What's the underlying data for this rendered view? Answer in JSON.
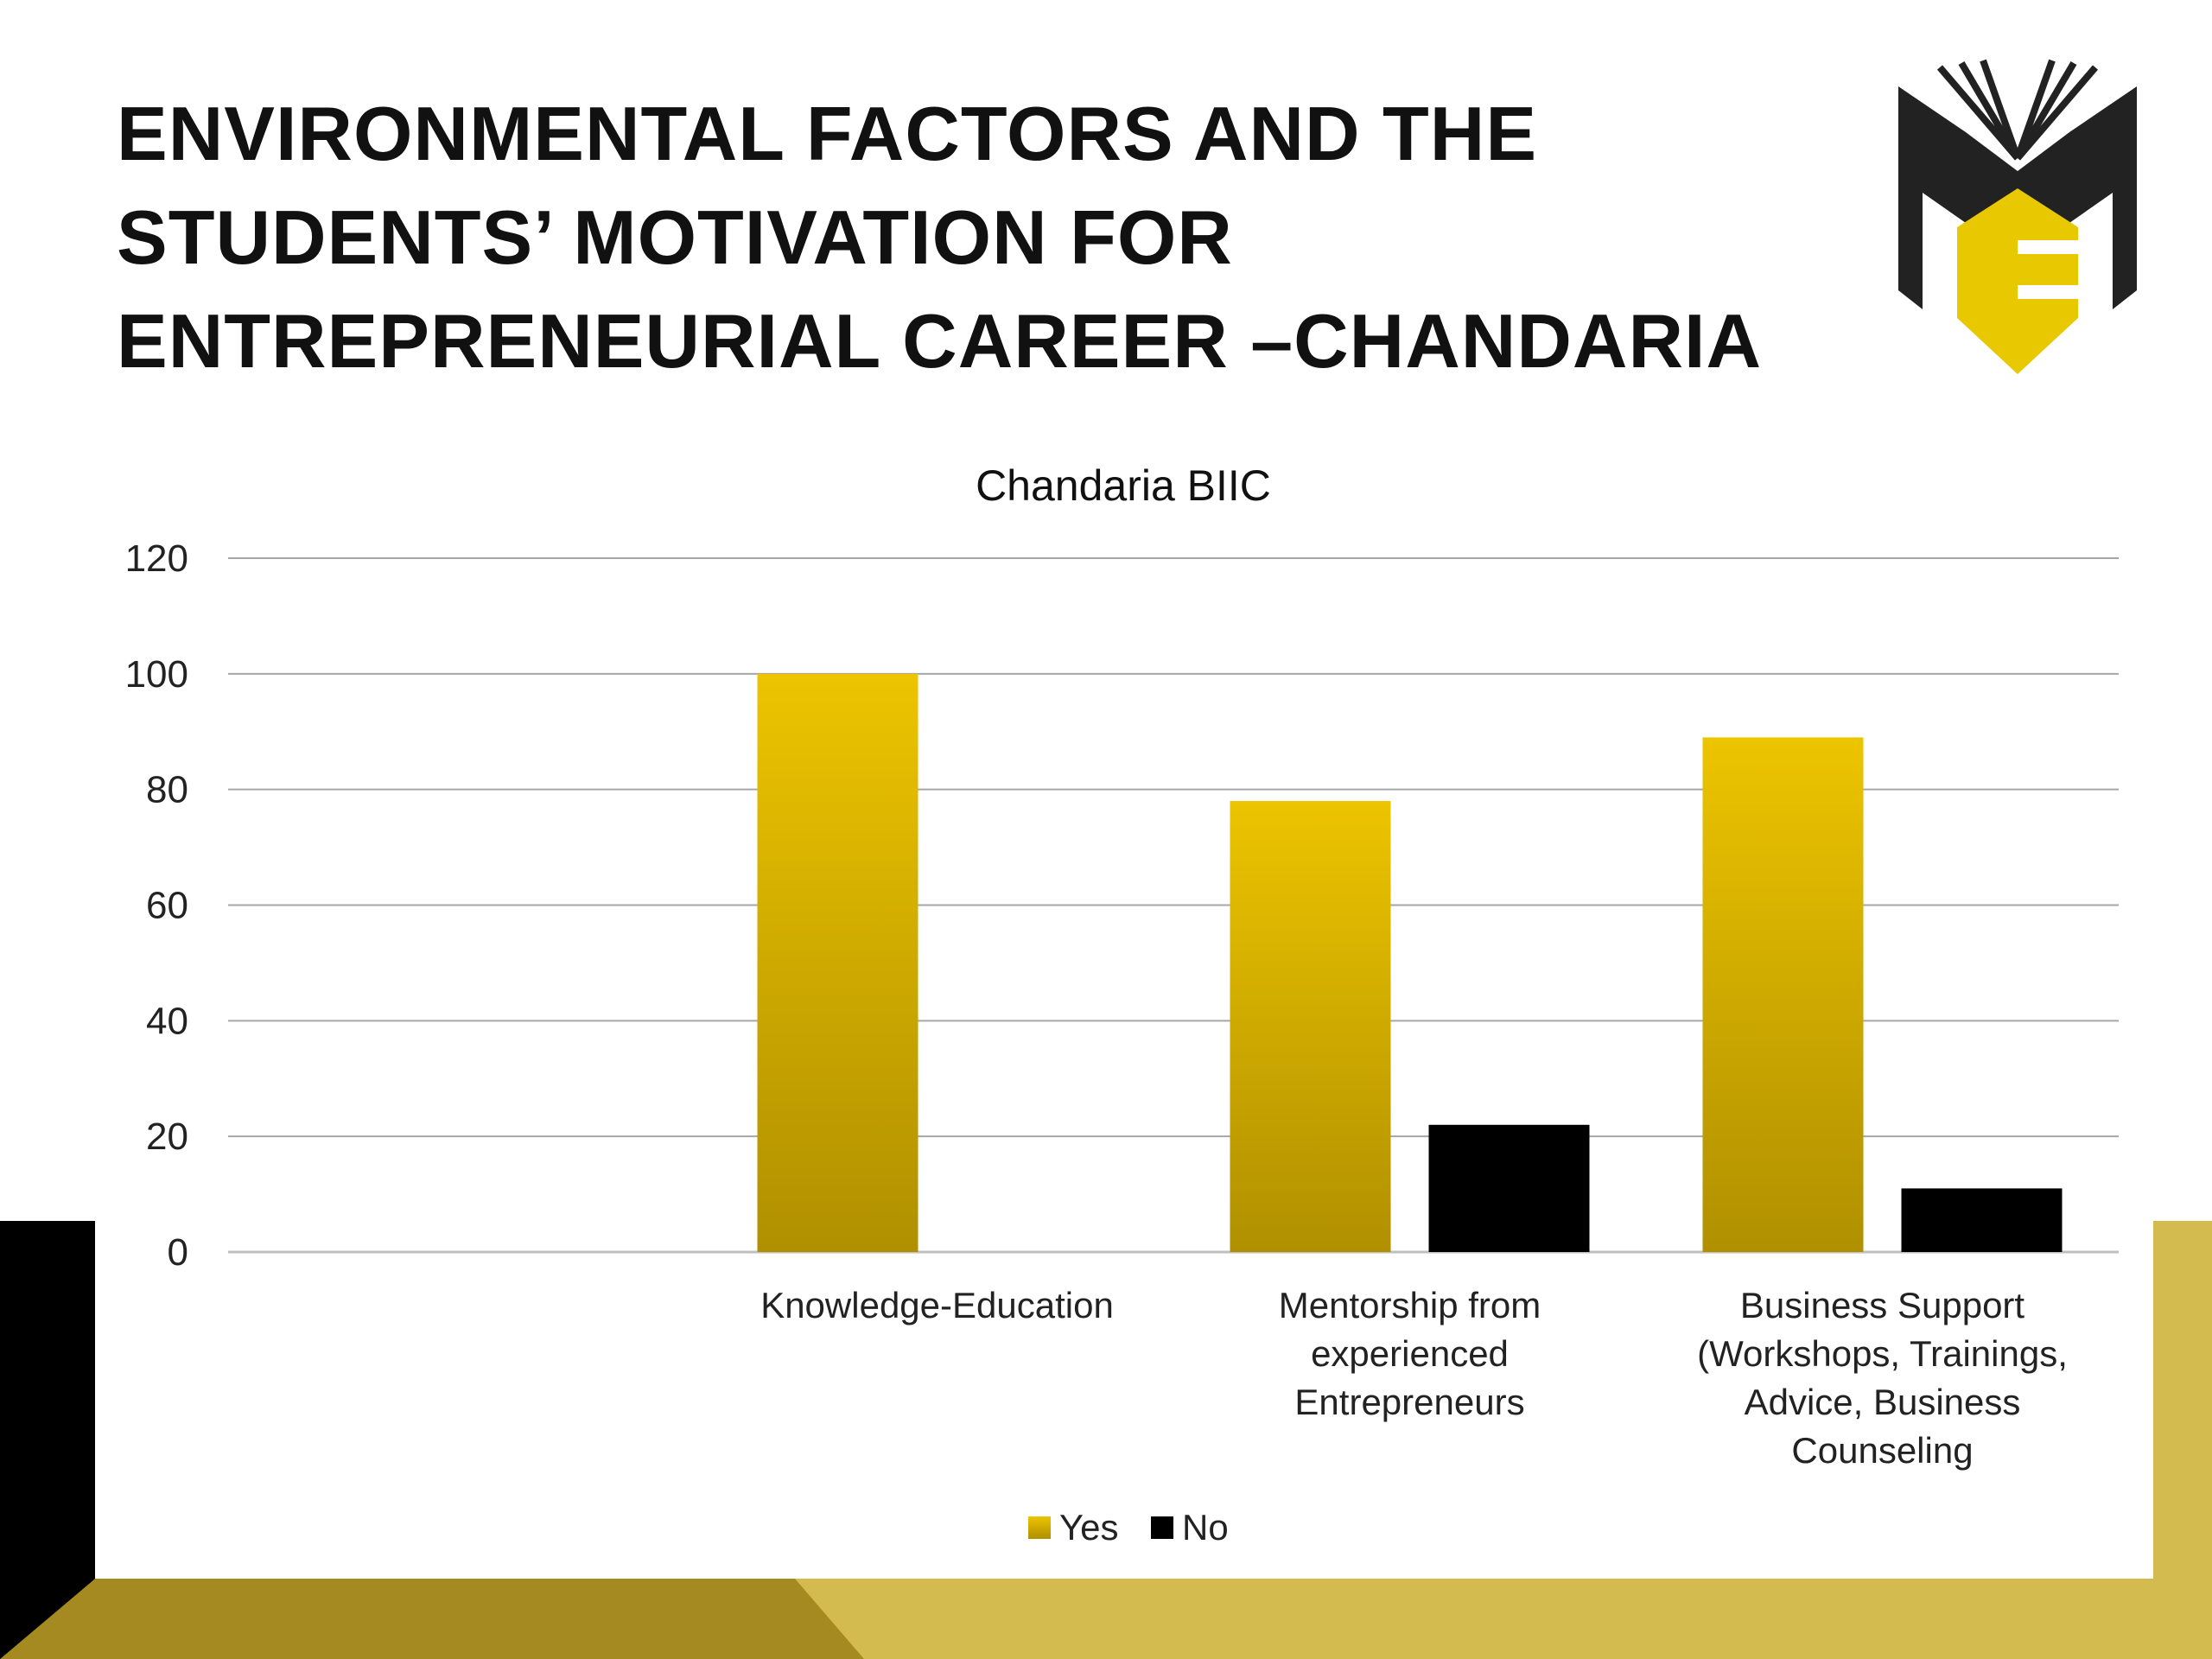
{
  "slide": {
    "title_lines": [
      "ENVIRONMENTAL FACTORS AND THE",
      "STUDENTS’ MOTIVATION FOR",
      "ENTREPRENEURIAL CAREER –CHANDARIA"
    ],
    "logo": "ME-book-logo",
    "colors": {
      "gold": "#e8c000",
      "dark_gold": "#a48a20",
      "light_gold": "#d4bb50",
      "black": "#000000"
    }
  },
  "chart_data": {
    "type": "bar",
    "title": "Chandaria BIIC",
    "categories": [
      "",
      "Knowledge-Education",
      "Mentorship from experienced Entrepreneurs",
      "Business Support (Workshops, Trainings, Advice, Business Counseling"
    ],
    "category_lines": [
      [],
      [
        "Knowledge-Education"
      ],
      [
        "Mentorship from",
        "experienced",
        "Entrepreneurs"
      ],
      [
        "Business Support",
        "(Workshops, Trainings,",
        "Advice, Business",
        "Counseling"
      ]
    ],
    "series": [
      {
        "name": "Yes",
        "color": "#e8c000",
        "values": [
          null,
          100,
          78,
          89
        ]
      },
      {
        "name": "No",
        "color": "#000000",
        "values": [
          null,
          0,
          22,
          11
        ]
      }
    ],
    "ylim": [
      0,
      120
    ],
    "yticks": [
      0,
      20,
      40,
      60,
      80,
      100,
      120
    ],
    "xlabel": "",
    "ylabel": "",
    "grid": true,
    "legend": "bottom-center"
  }
}
